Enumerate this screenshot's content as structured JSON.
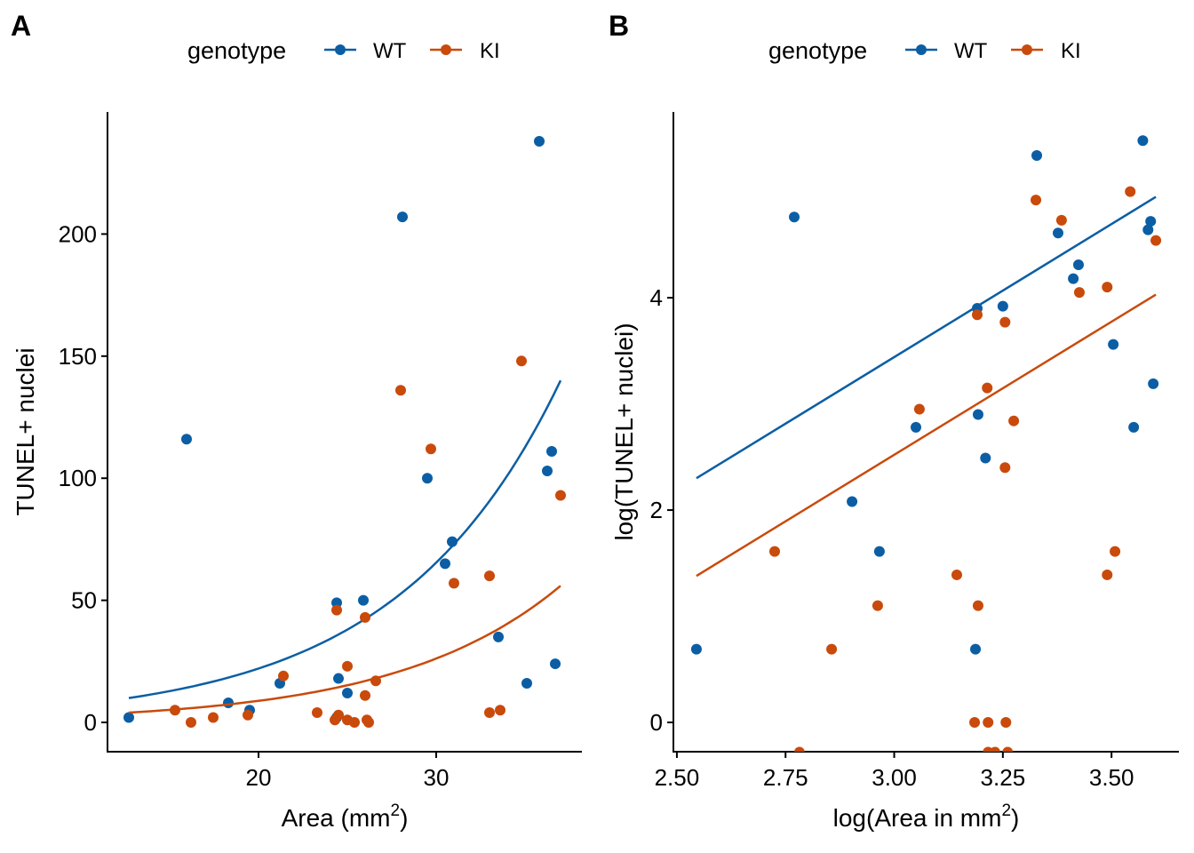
{
  "colors": {
    "WT": "#0B5EA4",
    "KI": "#C94A0B"
  },
  "chart_data": [
    {
      "panel": "A",
      "type": "scatter",
      "xlabel": "Area (mm",
      "xlabel_sup": "2",
      "xlabel_end": ")",
      "ylabel": "TUNEL+ nuclei",
      "xlim": [
        11.5,
        38.2
      ],
      "ylim": [
        -12,
        250
      ],
      "xticks": [
        20,
        30
      ],
      "yticks": [
        0,
        50,
        100,
        150,
        200
      ],
      "legend": {
        "title": "genotype",
        "entries": [
          "WT",
          "KI"
        ],
        "position": "top"
      },
      "fit": "exponential",
      "series": [
        {
          "name": "WT",
          "x": [
            12.7,
            15.95,
            18.3,
            19.5,
            21.2,
            24.4,
            24.5,
            24.4,
            25.0,
            25.9,
            28.1,
            29.5,
            30.5,
            30.9,
            33.5,
            35.1,
            35.8,
            36.25,
            36.5,
            36.7
          ],
          "y": [
            2,
            116,
            8,
            5,
            16,
            49,
            18,
            2,
            12,
            50,
            207,
            100,
            65,
            74,
            35,
            16,
            238,
            103,
            111,
            24
          ],
          "fit_line": {
            "intercept_log": 0.92,
            "slope_log": 0.1087,
            "x_range": [
              12.7,
              37.0
            ]
          }
        },
        {
          "name": "KI",
          "x": [
            15.3,
            16.2,
            17.45,
            19.4,
            21.4,
            23.3,
            24.3,
            24.4,
            24.5,
            25.0,
            25.0,
            25.4,
            26.0,
            26.0,
            26.1,
            26.2,
            26.6,
            28.0,
            29.7,
            31.0,
            33.0,
            33.0,
            33.6,
            34.8,
            37.0
          ],
          "y": [
            5,
            0,
            2,
            3,
            19,
            4,
            1,
            46,
            3,
            23,
            1,
            0,
            11,
            43,
            1,
            0,
            17,
            136,
            112,
            57,
            60,
            4,
            5,
            148,
            93
          ],
          "fit_line": {
            "intercept_log": 0.006,
            "slope_log": 0.1086,
            "x_range": [
              12.7,
              37.0
            ]
          }
        }
      ]
    },
    {
      "panel": "B",
      "type": "scatter",
      "xlabel": "log(Area in mm",
      "xlabel_sup": "2",
      "xlabel_end": ")",
      "ylabel": "log(TUNEL+ nuclei)",
      "xlim": [
        2.492,
        3.655
      ],
      "ylim": [
        -0.276,
        5.75
      ],
      "xticks": [
        "2.50",
        "2.75",
        "3.00",
        "3.25",
        "3.50"
      ],
      "yticks": [
        0,
        2,
        4
      ],
      "legend": {
        "title": "genotype",
        "entries": [
          "WT",
          "KI"
        ],
        "position": "top"
      },
      "fit": "linear",
      "series": [
        {
          "name": "WT",
          "x": [
            2.545,
            2.77,
            2.903,
            2.966,
            3.05,
            3.187,
            3.191,
            3.193,
            3.21,
            3.25,
            3.328,
            3.377,
            3.412,
            3.424,
            3.504,
            3.551,
            3.572,
            3.584,
            3.59,
            3.596
          ],
          "y": [
            0.69,
            4.76,
            2.08,
            1.61,
            2.78,
            0.69,
            3.9,
            2.9,
            2.49,
            3.92,
            5.34,
            4.61,
            4.18,
            4.31,
            3.56,
            2.78,
            5.48,
            4.64,
            4.72,
            3.19
          ],
          "fit_line": {
            "x": [
              2.545,
              3.602
            ],
            "y": [
              2.3,
              4.95
            ]
          }
        },
        {
          "name": "KI",
          "x": [
            2.725,
            2.782,
            2.856,
            2.962,
            3.058,
            3.144,
            3.185,
            3.191,
            3.193,
            3.214,
            3.216,
            3.216,
            3.232,
            3.255,
            3.255,
            3.257,
            3.261,
            3.275,
            3.326,
            3.385,
            3.426,
            3.49,
            3.49,
            3.508,
            3.543,
            3.602
          ],
          "y": [
            1.61,
            -0.28,
            0.69,
            1.1,
            2.95,
            1.39,
            0,
            3.84,
            1.1,
            3.15,
            0,
            -0.28,
            -0.28,
            3.77,
            2.4,
            0,
            -0.28,
            2.84,
            4.92,
            4.73,
            4.05,
            4.1,
            1.39,
            1.61,
            5.0,
            4.54
          ],
          "fit_line": {
            "x": [
              2.545,
              3.602
            ],
            "y": [
              1.38,
              4.03
            ]
          }
        }
      ]
    }
  ]
}
